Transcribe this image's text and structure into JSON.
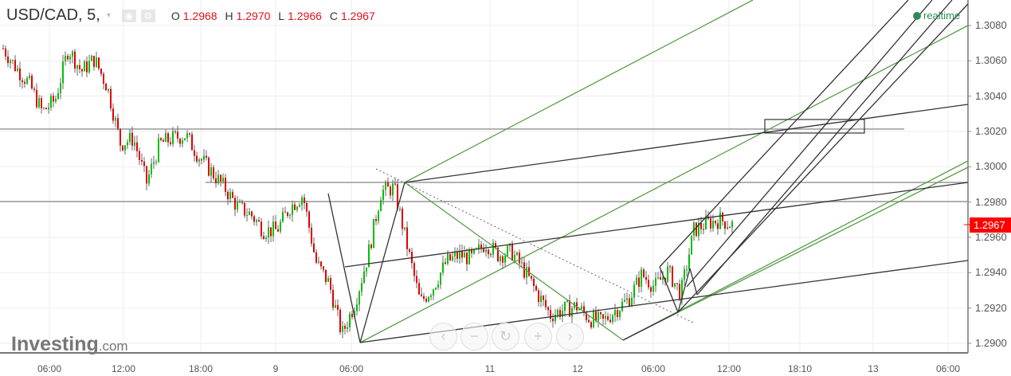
{
  "header": {
    "symbol": "USD/CAD, 5,",
    "caret": "▾",
    "eye_icon": "◉",
    "gear_icon": "⚙",
    "ohlc": [
      {
        "k": "O",
        "v": "1.2968"
      },
      {
        "k": "H",
        "v": "1.2970"
      },
      {
        "k": "L",
        "v": "1.2966"
      },
      {
        "k": "C",
        "v": "1.2967"
      }
    ]
  },
  "realtime": "realtime",
  "logo": {
    "main": "Investing",
    "suffix": ".com"
  },
  "nav": [
    "‹",
    "−",
    "↻",
    "+",
    "›"
  ],
  "colors": {
    "up": "#00c000",
    "down": "#e00000",
    "green_line": "#5a9e4b",
    "price_tag": "#ff0000"
  },
  "chart_data": {
    "type": "candlestick",
    "title": "USD/CAD, 5,",
    "y_ticks": [
      "1.3080",
      "1.3060",
      "1.3040",
      "1.3020",
      "1.3000",
      "1.2980",
      "1.2960",
      "1.2940",
      "1.2920",
      "1.2900"
    ],
    "x_ticks": [
      "06:00",
      "12:00",
      "18:00",
      "9",
      "06:00",
      "11",
      "12",
      "06:00",
      "12:00",
      "18:10",
      "13",
      "06:00"
    ],
    "ylim": [
      1.2888,
      1.3094
    ],
    "current_price": "1.2967",
    "close_path": [
      1.3067,
      1.3056,
      1.3047,
      1.3031,
      1.3038,
      1.3067,
      1.3054,
      1.3061,
      1.3045,
      1.3013,
      1.3016,
      1.2991,
      1.3013,
      1.3016,
      1.3018,
      1.3006,
      1.2997,
      1.2988,
      1.2977,
      1.2973,
      1.2964,
      1.2964,
      1.2977,
      1.2984,
      1.2946,
      1.2934,
      1.2905,
      1.2923,
      1.295,
      1.2986,
      1.2988,
      1.2955,
      1.2923,
      1.2932,
      1.2946,
      1.295,
      1.2948,
      1.2957,
      1.295,
      1.2952,
      1.2941,
      1.2928,
      1.2916,
      1.2919,
      1.2921,
      1.2914,
      1.2912,
      1.2919,
      1.2925,
      1.2939,
      1.2932,
      1.2941,
      1.2928,
      1.2964,
      1.2968,
      1.297,
      1.2967
    ],
    "grid": true
  }
}
